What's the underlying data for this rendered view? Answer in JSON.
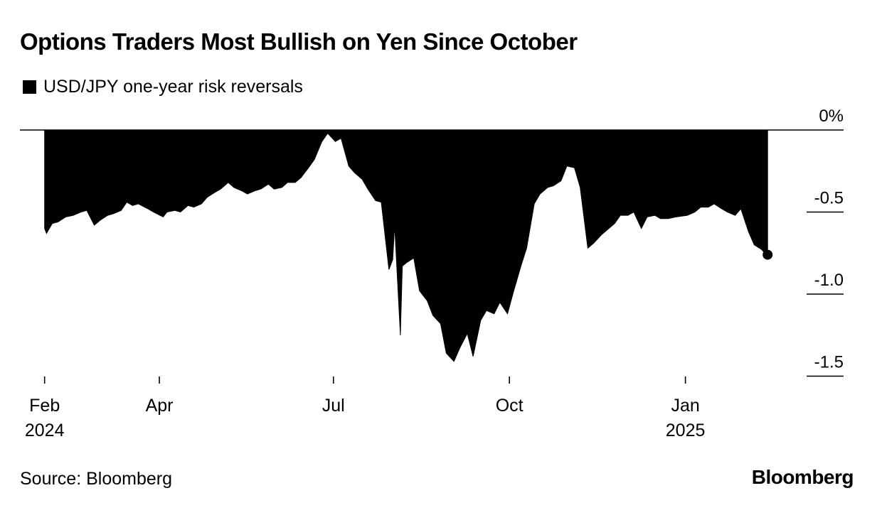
{
  "chart_data": {
    "type": "area",
    "title": "Options Traders Most Bullish on Yen Since October",
    "legend": "USD/JPY one-year risk reversals",
    "source": "Source: Bloomberg",
    "brand": "Bloomberg",
    "ylim": [
      -1.5,
      0
    ],
    "y_ticks": [
      {
        "value": 0,
        "label": "0%"
      },
      {
        "value": -0.5,
        "label": "-0.5"
      },
      {
        "value": -1.0,
        "label": "-1.0"
      },
      {
        "value": -1.5,
        "label": "-1.5"
      }
    ],
    "x_range": [
      "2024-01-31",
      "2025-02-17"
    ],
    "x_ticks": [
      {
        "date": "2024-02-01",
        "label": "Feb",
        "year": "2024"
      },
      {
        "date": "2024-04-01",
        "label": "Apr",
        "year": ""
      },
      {
        "date": "2024-07-01",
        "label": "Jul",
        "year": ""
      },
      {
        "date": "2024-10-01",
        "label": "Oct",
        "year": ""
      },
      {
        "date": "2025-01-01",
        "label": "Jan",
        "year": "2025"
      }
    ],
    "series": [
      {
        "name": "USD/JPY one-year risk reversals",
        "x": [
          "2024-02-01",
          "2024-02-02",
          "2024-02-05",
          "2024-02-08",
          "2024-02-12",
          "2024-02-16",
          "2024-02-20",
          "2024-02-23",
          "2024-02-27",
          "2024-03-01",
          "2024-03-05",
          "2024-03-08",
          "2024-03-12",
          "2024-03-15",
          "2024-03-18",
          "2024-03-21",
          "2024-03-26",
          "2024-03-29",
          "2024-04-03",
          "2024-04-05",
          "2024-04-09",
          "2024-04-12",
          "2024-04-16",
          "2024-04-19",
          "2024-04-23",
          "2024-04-26",
          "2024-04-30",
          "2024-05-03",
          "2024-05-07",
          "2024-05-10",
          "2024-05-14",
          "2024-05-17",
          "2024-05-21",
          "2024-05-24",
          "2024-05-28",
          "2024-05-31",
          "2024-06-04",
          "2024-06-07",
          "2024-06-11",
          "2024-06-14",
          "2024-06-18",
          "2024-06-21",
          "2024-06-25",
          "2024-06-28",
          "2024-07-02",
          "2024-07-05",
          "2024-07-09",
          "2024-07-12",
          "2024-07-16",
          "2024-07-19",
          "2024-07-23",
          "2024-07-26",
          "2024-07-30",
          "2024-08-01",
          "2024-08-02",
          "2024-08-05",
          "2024-08-06",
          "2024-08-08",
          "2024-08-12",
          "2024-08-15",
          "2024-08-19",
          "2024-08-22",
          "2024-08-26",
          "2024-08-29",
          "2024-09-02",
          "2024-09-05",
          "2024-09-09",
          "2024-09-12",
          "2024-09-16",
          "2024-09-19",
          "2024-09-23",
          "2024-09-26",
          "2024-09-30",
          "2024-10-03",
          "2024-10-07",
          "2024-10-10",
          "2024-10-14",
          "2024-10-17",
          "2024-10-21",
          "2024-10-24",
          "2024-10-28",
          "2024-10-31",
          "2024-11-04",
          "2024-11-07",
          "2024-11-11",
          "2024-11-14",
          "2024-11-18",
          "2024-11-21",
          "2024-11-25",
          "2024-11-28",
          "2024-12-02",
          "2024-12-05",
          "2024-12-09",
          "2024-12-12",
          "2024-12-16",
          "2024-12-19",
          "2024-12-23",
          "2024-12-27",
          "2025-01-02",
          "2025-01-06",
          "2025-01-09",
          "2025-01-13",
          "2025-01-16",
          "2025-01-20",
          "2025-01-23",
          "2025-01-27",
          "2025-01-30",
          "2025-02-03",
          "2025-02-06",
          "2025-02-10",
          "2025-02-12",
          "2025-02-13"
        ],
        "values": [
          -0.6,
          -0.63,
          -0.57,
          -0.56,
          -0.53,
          -0.52,
          -0.5,
          -0.49,
          -0.58,
          -0.55,
          -0.52,
          -0.51,
          -0.49,
          -0.44,
          -0.46,
          -0.45,
          -0.48,
          -0.5,
          -0.53,
          -0.5,
          -0.49,
          -0.5,
          -0.46,
          -0.47,
          -0.45,
          -0.41,
          -0.38,
          -0.36,
          -0.32,
          -0.35,
          -0.37,
          -0.39,
          -0.37,
          -0.36,
          -0.33,
          -0.36,
          -0.35,
          -0.32,
          -0.32,
          -0.29,
          -0.23,
          -0.18,
          -0.07,
          -0.02,
          -0.07,
          -0.05,
          -0.22,
          -0.26,
          -0.3,
          -0.36,
          -0.43,
          -0.44,
          -0.85,
          -0.79,
          -0.58,
          -1.25,
          -0.83,
          -0.81,
          -0.78,
          -0.98,
          -1.04,
          -1.13,
          -1.18,
          -1.36,
          -1.41,
          -1.33,
          -1.24,
          -1.38,
          -1.16,
          -1.1,
          -1.12,
          -1.05,
          -1.12,
          -0.99,
          -0.83,
          -0.72,
          -0.45,
          -0.39,
          -0.35,
          -0.34,
          -0.31,
          -0.22,
          -0.23,
          -0.35,
          -0.72,
          -0.69,
          -0.64,
          -0.61,
          -0.57,
          -0.52,
          -0.52,
          -0.5,
          -0.6,
          -0.53,
          -0.52,
          -0.54,
          -0.54,
          -0.53,
          -0.52,
          -0.5,
          -0.47,
          -0.47,
          -0.45,
          -0.48,
          -0.5,
          -0.52,
          -0.48,
          -0.62,
          -0.7,
          -0.73,
          -0.76,
          -0.76
        ]
      }
    ]
  }
}
